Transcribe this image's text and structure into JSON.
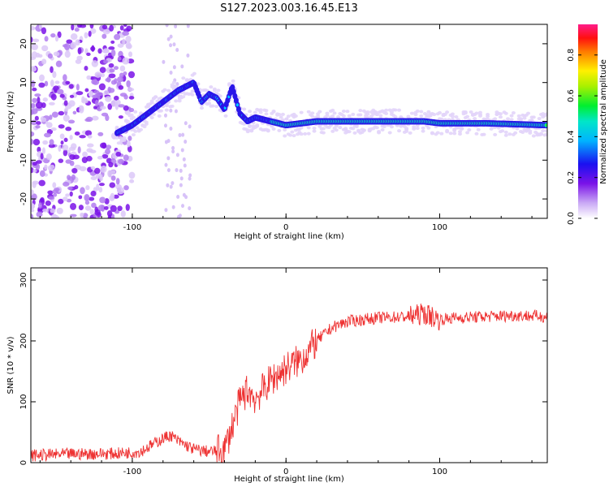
{
  "title": "S127.2023.003.16.45.E13",
  "colors": {
    "snr_line": "#ee3333",
    "axis": "#000000"
  },
  "chart_data": [
    {
      "type": "heatmap",
      "xlabel": "Height of straight line (km)",
      "ylabel": "Frequency (Hz)",
      "xlim": [
        -166,
        170
      ],
      "ylim": [
        -25,
        25
      ],
      "x_ticks": [
        -100,
        0,
        100
      ],
      "y_ticks": [
        -20,
        -10,
        0,
        10,
        20
      ],
      "colorbar": {
        "label": "Normalized spectral amplitude",
        "range": [
          0.0,
          0.95
        ],
        "ticks": [
          "0.0",
          "0.2",
          "0.4",
          "0.6",
          "0.8"
        ],
        "colormap": "rainbow (white-violet-blue-cyan-green-yellow-red-magenta)"
      },
      "ridge": {
        "x": [
          -110,
          -100,
          -90,
          -80,
          -70,
          -60,
          -55,
          -50,
          -45,
          -40,
          -35,
          -30,
          -25,
          -20,
          -10,
          0,
          20,
          50,
          80,
          90,
          100,
          130,
          170
        ],
        "y": [
          -3,
          -1,
          2,
          5,
          8,
          10,
          5,
          7,
          6,
          3,
          9,
          2,
          0,
          1,
          0,
          -1,
          0,
          0,
          0,
          0,
          -0.5,
          -0.5,
          -1
        ]
      }
    },
    {
      "type": "line",
      "xlabel": "Height of straight line (km)",
      "ylabel": "SNR (10 * v/v)",
      "xlim": [
        -166,
        170
      ],
      "ylim": [
        0,
        320
      ],
      "x_ticks": [
        -100,
        0,
        100
      ],
      "y_ticks": [
        0,
        100,
        200,
        300
      ],
      "series": [
        {
          "x": [
            -166,
            -140,
            -110,
            -95,
            -90,
            -80,
            -75,
            -70,
            -60,
            -50,
            -40,
            -35,
            -30,
            -25,
            -20,
            -10,
            0,
            10,
            20,
            30,
            40,
            60,
            80,
            90,
            95,
            100,
            110,
            130,
            150,
            170
          ],
          "y": [
            12,
            14,
            15,
            18,
            25,
            40,
            45,
            35,
            22,
            18,
            20,
            60,
            100,
            120,
            105,
            135,
            155,
            170,
            200,
            222,
            232,
            238,
            240,
            245,
            240,
            235,
            238,
            240,
            242,
            240
          ]
        }
      ]
    }
  ]
}
